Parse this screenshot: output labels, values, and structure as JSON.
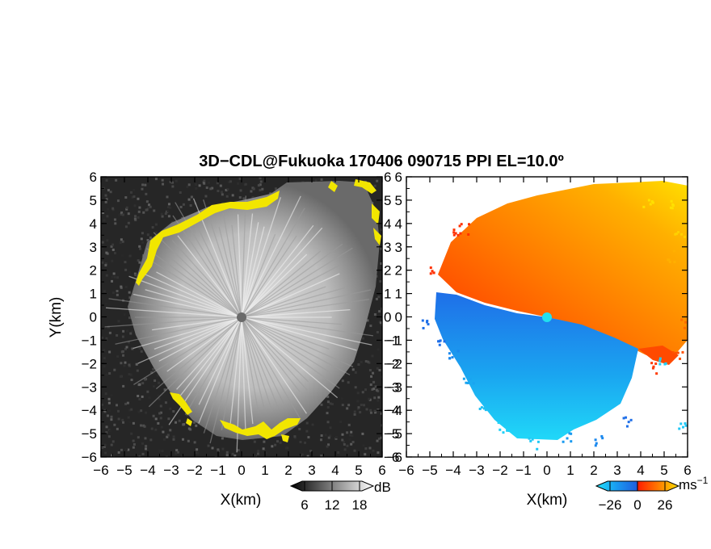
{
  "title": "3D−CDL@Fukuoka 170406 090715 PPI EL=10.0º",
  "chart_data": [
    {
      "type": "heatmap",
      "name": "backscatter-ppi",
      "xlabel": "X(km)",
      "ylabel": "Y(km)",
      "xlim": [
        -6,
        6
      ],
      "ylim": [
        -6,
        6
      ],
      "xticks": [
        "−6",
        "−5",
        "−4",
        "−3",
        "−2",
        "−1",
        "0",
        "1",
        "2",
        "3",
        "4",
        "5",
        "6"
      ],
      "yticks": [
        "6",
        "5",
        "4",
        "3",
        "2",
        "1",
        "0",
        "−1",
        "−2",
        "−3",
        "−4",
        "−5",
        "−6"
      ],
      "colormap": "grayscale with yellow edge flags",
      "colorbar": {
        "unit": "dB",
        "ticks": [
          "6",
          "12",
          "18"
        ],
        "range": [
          3,
          21
        ]
      },
      "colors": {
        "background": "#202020",
        "echo": "#c8c8c8",
        "flag": "#f2e600"
      }
    },
    {
      "type": "heatmap",
      "name": "doppler-velocity-ppi",
      "xlabel": "X(km)",
      "xlim": [
        -6,
        6
      ],
      "ylim": [
        -6,
        6
      ],
      "xticks": [
        "−6",
        "−5",
        "−4",
        "−3",
        "−2",
        "−1",
        "0",
        "1",
        "2",
        "3",
        "4",
        "5",
        "6"
      ],
      "yticks": [
        "6",
        "5",
        "4",
        "3",
        "2",
        "1",
        "0",
        "−1",
        "−2",
        "−3",
        "−4",
        "−5",
        "−6"
      ],
      "colormap": "blue-cyan (negative) / red-orange-yellow (positive)",
      "colorbar": {
        "unit": "ms",
        "unit_exp": "−1",
        "ticks": [
          "−26",
          "0",
          "26"
        ],
        "range": [
          -39,
          39
        ]
      },
      "colors": {
        "negative_far": "#1f78f0",
        "negative_near": "#20d8f8",
        "positive_near": "#ff3a00",
        "positive_far": "#ffe000"
      }
    }
  ]
}
